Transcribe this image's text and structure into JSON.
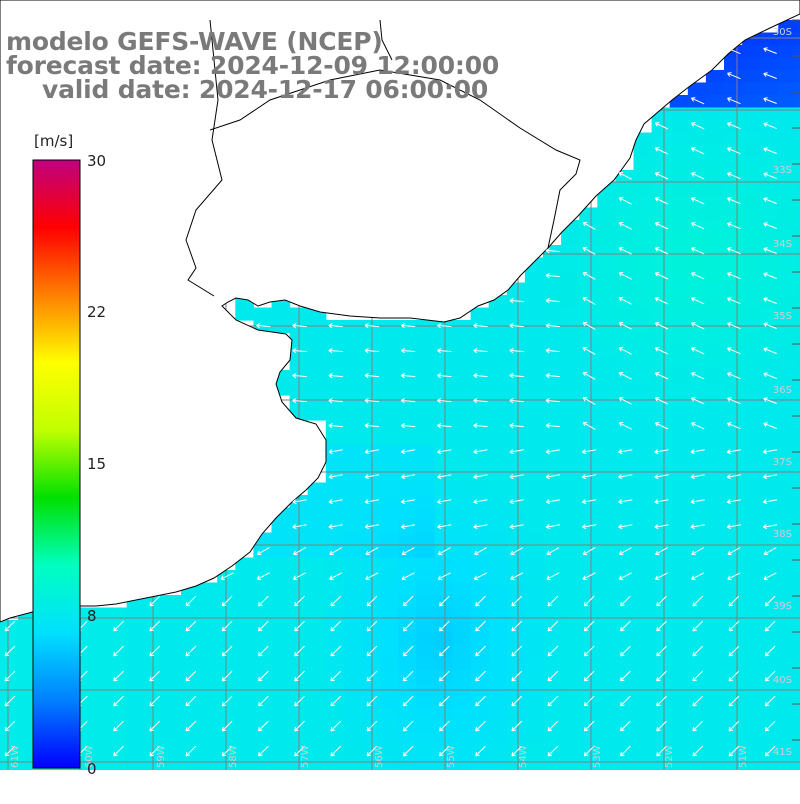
{
  "title": {
    "line1": "modelo GEFS-WAVE (NCEP)",
    "line2": "forecast date: 2024-12-09 12:00:00",
    "line3": "valid date: 2024-12-17 06:00:00"
  },
  "colorbar": {
    "unit": "[m/s]",
    "min": 0,
    "max": 30,
    "ticks": [
      "30",
      "22",
      "15",
      "8",
      "0"
    ],
    "tick_values": [
      30,
      22,
      15,
      8,
      0
    ],
    "stops": [
      "#0000ff",
      "#0080ff",
      "#00e0ff",
      "#00ffc0",
      "#00e000",
      "#c0ff00",
      "#ffff00",
      "#ff8000",
      "#ff0000",
      "#c00080"
    ]
  },
  "lat_labels": [
    "30S",
    "33S",
    "34S",
    "35S",
    "36S",
    "37S",
    "38S",
    "39S",
    "40S",
    "41S"
  ],
  "lon_labels": [
    "61W",
    "60W",
    "59W",
    "58W",
    "57W",
    "56W",
    "55W",
    "54W",
    "53W",
    "52W",
    "51W"
  ],
  "colors": {
    "land": "#ffffff",
    "grid": "#808080",
    "coast": "#000000",
    "arrow": "#ffffff",
    "title": "#7a7a7a"
  },
  "wind_field": {
    "description_units": "m/s",
    "speed_range_shown": [
      4,
      10
    ],
    "dominant_direction_north": "from northeast/east, arrows pointing southwest-west",
    "dominant_direction_south": "arrows pointing southwest"
  }
}
